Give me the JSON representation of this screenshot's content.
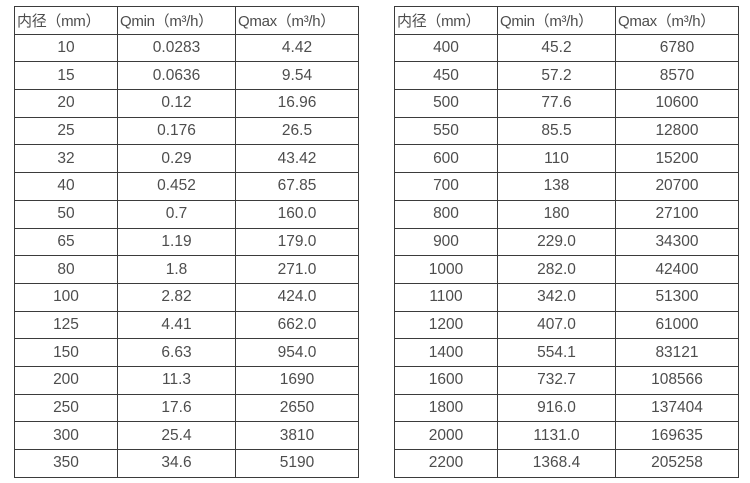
{
  "style": {
    "background_color": "#ffffff",
    "border_color": "#3b3b3b",
    "text_color": "#4d4d4d"
  },
  "chart_data": [
    {
      "type": "table",
      "name": "flow-rate-table-small-diameters",
      "columns": [
        "内径（mm）",
        "Qmin（m³/h）",
        "Qmax（m³/h）"
      ],
      "rows": [
        [
          "10",
          "0.0283",
          "4.42"
        ],
        [
          "15",
          "0.0636",
          "9.54"
        ],
        [
          "20",
          "0.12",
          "16.96"
        ],
        [
          "25",
          "0.176",
          "26.5"
        ],
        [
          "32",
          "0.29",
          "43.42"
        ],
        [
          "40",
          "0.452",
          "67.85"
        ],
        [
          "50",
          "0.7",
          "160.0"
        ],
        [
          "65",
          "1.19",
          "179.0"
        ],
        [
          "80",
          "1.8",
          "271.0"
        ],
        [
          "100",
          "2.82",
          "424.0"
        ],
        [
          "125",
          "4.41",
          "662.0"
        ],
        [
          "150",
          "6.63",
          "954.0"
        ],
        [
          "200",
          "11.3",
          "1690"
        ],
        [
          "250",
          "17.6",
          "2650"
        ],
        [
          "300",
          "25.4",
          "3810"
        ],
        [
          "350",
          "34.6",
          "5190"
        ]
      ]
    },
    {
      "type": "table",
      "name": "flow-rate-table-large-diameters",
      "columns": [
        "内径（mm）",
        "Qmin（m³/h）",
        "Qmax（m³/h）"
      ],
      "rows": [
        [
          "400",
          "45.2",
          "6780"
        ],
        [
          "450",
          "57.2",
          "8570"
        ],
        [
          "500",
          "77.6",
          "10600"
        ],
        [
          "550",
          "85.5",
          "12800"
        ],
        [
          "600",
          "110",
          "15200"
        ],
        [
          "700",
          "138",
          "20700"
        ],
        [
          "800",
          "180",
          "27100"
        ],
        [
          "900",
          "229.0",
          "34300"
        ],
        [
          "1000",
          "282.0",
          "42400"
        ],
        [
          "1100",
          "342.0",
          "51300"
        ],
        [
          "1200",
          "407.0",
          "61000"
        ],
        [
          "1400",
          "554.1",
          "83121"
        ],
        [
          "1600",
          "732.7",
          "108566"
        ],
        [
          "1800",
          "916.0",
          "137404"
        ],
        [
          "2000",
          "1131.0",
          "169635"
        ],
        [
          "2200",
          "1368.4",
          "205258"
        ]
      ]
    }
  ]
}
